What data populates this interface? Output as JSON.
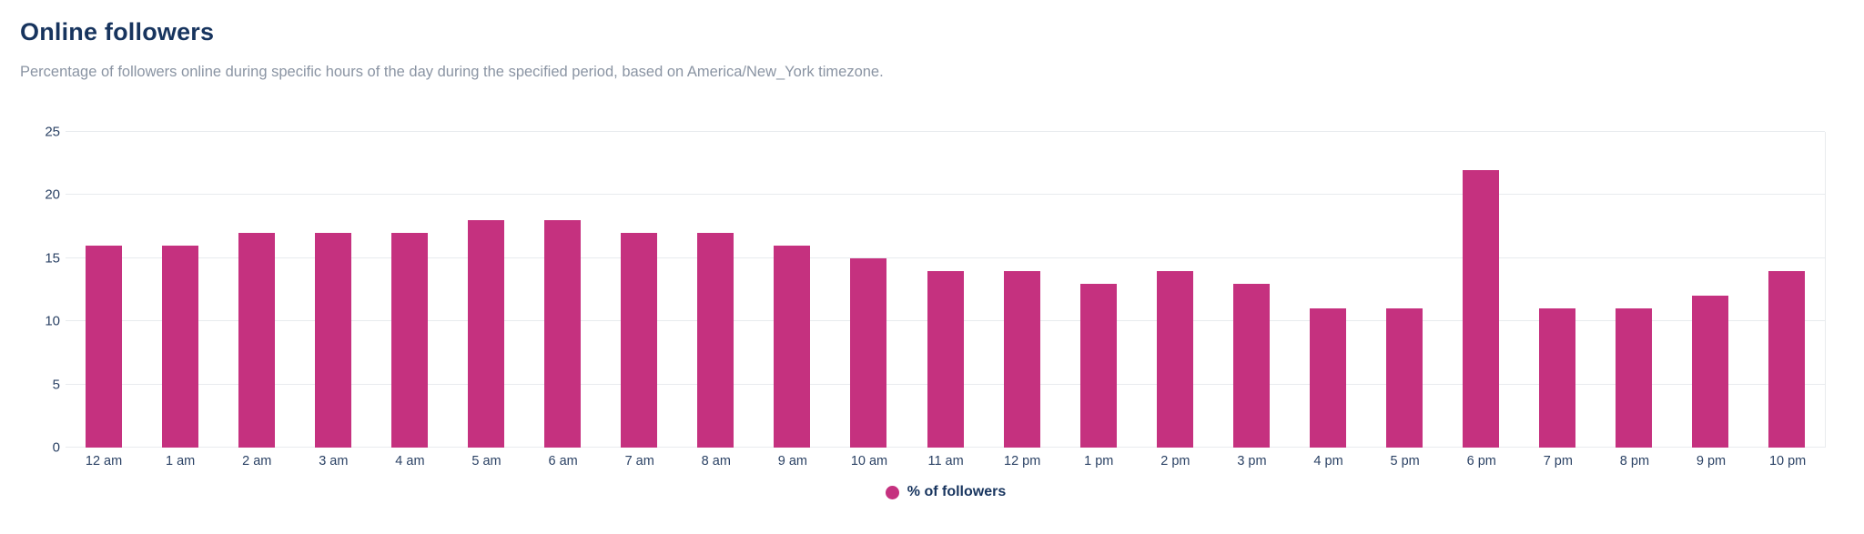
{
  "header": {
    "title": "Online followers",
    "subtitle": "Percentage of followers online during specific hours of the day during the specified period, based on America/New_York timezone."
  },
  "legend": {
    "label": "% of followers"
  },
  "colors": {
    "bar": "#C5317F",
    "title": "#17345E",
    "subtitle": "#8A94A3",
    "axis_label": "#2B4265",
    "gridline": "#E8EBEE",
    "background": "#FFFFFF"
  },
  "chart_data": {
    "type": "bar",
    "title": "Online followers",
    "subtitle": "Percentage of followers online during specific hours of the day during the specified period, based on America/New_York timezone.",
    "categories": [
      "12 am",
      "1 am",
      "2 am",
      "3 am",
      "4 am",
      "5 am",
      "6 am",
      "7 am",
      "8 am",
      "9 am",
      "10 am",
      "11 am",
      "12 pm",
      "1 pm",
      "2 pm",
      "3 pm",
      "4 pm",
      "5 pm",
      "6 pm",
      "7 pm",
      "8 pm",
      "9 pm",
      "10 pm"
    ],
    "values": [
      16,
      16,
      17,
      17,
      17,
      18,
      18,
      17,
      17,
      16,
      15,
      14,
      14,
      13,
      14,
      13,
      11,
      11,
      22,
      11,
      11,
      12,
      14
    ],
    "series_name": "% of followers",
    "xlabel": "",
    "ylabel": "",
    "ylim": [
      0,
      25
    ],
    "yticks": [
      0,
      5,
      10,
      15,
      20,
      25
    ],
    "grid": true,
    "legend_position": "bottom",
    "bar_color": "#C5317F"
  }
}
